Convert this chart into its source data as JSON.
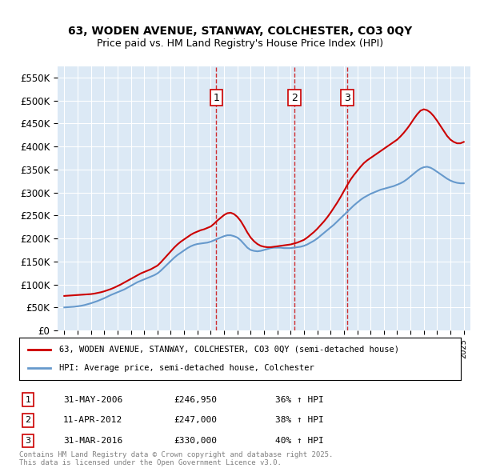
{
  "title_line1": "63, WODEN AVENUE, STANWAY, COLCHESTER, CO3 0QY",
  "title_line2": "Price paid vs. HM Land Registry's House Price Index (HPI)",
  "ylabel": "",
  "bg_color": "#dce9f5",
  "plot_bg_color": "#dce9f5",
  "red_line_label": "63, WODEN AVENUE, STANWAY, COLCHESTER, CO3 0QY (semi-detached house)",
  "blue_line_label": "HPI: Average price, semi-detached house, Colchester",
  "transactions": [
    {
      "num": 1,
      "date": "31-MAY-2006",
      "price": "£246,950",
      "pct": "36% ↑ HPI",
      "x": 2006.42
    },
    {
      "num": 2,
      "date": "11-APR-2012",
      "price": "£247,000",
      "pct": "38% ↑ HPI",
      "x": 2012.28
    },
    {
      "num": 3,
      "date": "31-MAR-2016",
      "price": "£330,000",
      "pct": "40% ↑ HPI",
      "x": 2016.25
    }
  ],
  "footer": "Contains HM Land Registry data © Crown copyright and database right 2025.\nThis data is licensed under the Open Government Licence v3.0.",
  "ylim": [
    0,
    575000
  ],
  "yticks": [
    0,
    50000,
    100000,
    150000,
    200000,
    250000,
    300000,
    350000,
    400000,
    450000,
    500000,
    550000
  ],
  "ytick_labels": [
    "£0",
    "£50K",
    "£100K",
    "£150K",
    "£200K",
    "£250K",
    "£300K",
    "£350K",
    "£400K",
    "£450K",
    "£500K",
    "£550K"
  ],
  "red_color": "#cc0000",
  "blue_color": "#6699cc",
  "hpi_x": [
    1995.0,
    1995.25,
    1995.5,
    1995.75,
    1996.0,
    1996.25,
    1996.5,
    1996.75,
    1997.0,
    1997.25,
    1997.5,
    1997.75,
    1998.0,
    1998.25,
    1998.5,
    1998.75,
    1999.0,
    1999.25,
    1999.5,
    1999.75,
    2000.0,
    2000.25,
    2000.5,
    2000.75,
    2001.0,
    2001.25,
    2001.5,
    2001.75,
    2002.0,
    2002.25,
    2002.5,
    2002.75,
    2003.0,
    2003.25,
    2003.5,
    2003.75,
    2004.0,
    2004.25,
    2004.5,
    2004.75,
    2005.0,
    2005.25,
    2005.5,
    2005.75,
    2006.0,
    2006.25,
    2006.5,
    2006.75,
    2007.0,
    2007.25,
    2007.5,
    2007.75,
    2008.0,
    2008.25,
    2008.5,
    2008.75,
    2009.0,
    2009.25,
    2009.5,
    2009.75,
    2010.0,
    2010.25,
    2010.5,
    2010.75,
    2011.0,
    2011.25,
    2011.5,
    2011.75,
    2012.0,
    2012.25,
    2012.5,
    2012.75,
    2013.0,
    2013.25,
    2013.5,
    2013.75,
    2014.0,
    2014.25,
    2014.5,
    2014.75,
    2015.0,
    2015.25,
    2015.5,
    2015.75,
    2016.0,
    2016.25,
    2016.5,
    2016.75,
    2017.0,
    2017.25,
    2017.5,
    2017.75,
    2018.0,
    2018.25,
    2018.5,
    2018.75,
    2019.0,
    2019.25,
    2019.5,
    2019.75,
    2020.0,
    2020.25,
    2020.5,
    2020.75,
    2021.0,
    2021.25,
    2021.5,
    2021.75,
    2022.0,
    2022.25,
    2022.5,
    2022.75,
    2023.0,
    2023.25,
    2023.5,
    2023.75,
    2024.0,
    2024.25,
    2024.5,
    2024.75,
    2025.0
  ],
  "hpi_y": [
    50000,
    50500,
    51000,
    51500,
    52500,
    53500,
    55000,
    57000,
    59000,
    61500,
    64000,
    67000,
    70000,
    73500,
    77000,
    80000,
    83000,
    86000,
    89000,
    93000,
    97000,
    101000,
    105000,
    108000,
    111000,
    114000,
    117000,
    120000,
    124000,
    130000,
    137000,
    144000,
    151000,
    158000,
    164000,
    169000,
    174000,
    179000,
    183000,
    186000,
    188000,
    189000,
    190000,
    191000,
    193000,
    196000,
    199000,
    202000,
    205000,
    207000,
    207000,
    205000,
    202000,
    196000,
    188000,
    180000,
    175000,
    173000,
    172000,
    173000,
    175000,
    177000,
    179000,
    180000,
    180000,
    180000,
    179000,
    179000,
    179000,
    180000,
    181000,
    182000,
    184000,
    187000,
    191000,
    195000,
    200000,
    206000,
    212000,
    218000,
    224000,
    230000,
    237000,
    244000,
    251000,
    258000,
    265000,
    272000,
    278000,
    284000,
    289000,
    293000,
    297000,
    300000,
    303000,
    306000,
    308000,
    310000,
    312000,
    314000,
    317000,
    320000,
    324000,
    329000,
    335000,
    341000,
    347000,
    352000,
    355000,
    356000,
    354000,
    350000,
    345000,
    340000,
    335000,
    330000,
    326000,
    323000,
    321000,
    320000,
    320000
  ],
  "red_x": [
    1995.0,
    1995.25,
    1995.5,
    1995.75,
    1996.0,
    1996.25,
    1996.5,
    1996.75,
    1997.0,
    1997.25,
    1997.5,
    1997.75,
    1998.0,
    1998.25,
    1998.5,
    1998.75,
    1999.0,
    1999.25,
    1999.5,
    1999.75,
    2000.0,
    2000.25,
    2000.5,
    2000.75,
    2001.0,
    2001.25,
    2001.5,
    2001.75,
    2002.0,
    2002.25,
    2002.5,
    2002.75,
    2003.0,
    2003.25,
    2003.5,
    2003.75,
    2004.0,
    2004.25,
    2004.5,
    2004.75,
    2005.0,
    2005.25,
    2005.5,
    2005.75,
    2006.0,
    2006.25,
    2006.5,
    2006.75,
    2007.0,
    2007.25,
    2007.5,
    2007.75,
    2008.0,
    2008.25,
    2008.5,
    2008.75,
    2009.0,
    2009.25,
    2009.5,
    2009.75,
    2010.0,
    2010.25,
    2010.5,
    2010.75,
    2011.0,
    2011.25,
    2011.5,
    2011.75,
    2012.0,
    2012.25,
    2012.5,
    2012.75,
    2013.0,
    2013.25,
    2013.5,
    2013.75,
    2014.0,
    2014.25,
    2014.5,
    2014.75,
    2015.0,
    2015.25,
    2015.5,
    2015.75,
    2016.0,
    2016.25,
    2016.5,
    2016.75,
    2017.0,
    2017.25,
    2017.5,
    2017.75,
    2018.0,
    2018.25,
    2018.5,
    2018.75,
    2019.0,
    2019.25,
    2019.5,
    2019.75,
    2020.0,
    2020.25,
    2020.5,
    2020.75,
    2021.0,
    2021.25,
    2021.5,
    2021.75,
    2022.0,
    2022.25,
    2022.5,
    2022.75,
    2023.0,
    2023.25,
    2023.5,
    2023.75,
    2024.0,
    2024.25,
    2024.5,
    2024.75,
    2025.0
  ],
  "red_y": [
    75000,
    75500,
    76000,
    76500,
    77000,
    77500,
    78000,
    78500,
    79000,
    80000,
    81500,
    83000,
    85000,
    87500,
    90000,
    93000,
    96500,
    100000,
    104000,
    108000,
    112000,
    116000,
    120000,
    124000,
    127000,
    130000,
    133000,
    137000,
    141000,
    148000,
    156000,
    164000,
    172000,
    180000,
    187000,
    193000,
    198000,
    203000,
    208000,
    212000,
    215000,
    218000,
    220000,
    223000,
    226000,
    232000,
    239000,
    245000,
    251000,
    255000,
    256000,
    253000,
    247000,
    238000,
    226000,
    213000,
    202000,
    194000,
    188000,
    184000,
    182000,
    181000,
    181000,
    182000,
    183000,
    184000,
    185000,
    186000,
    187000,
    189000,
    191000,
    194000,
    197000,
    202000,
    208000,
    214000,
    221000,
    229000,
    237000,
    246000,
    256000,
    267000,
    278000,
    290000,
    303000,
    316000,
    328000,
    338000,
    347000,
    356000,
    364000,
    370000,
    375000,
    380000,
    385000,
    390000,
    395000,
    400000,
    405000,
    410000,
    415000,
    422000,
    430000,
    439000,
    449000,
    460000,
    470000,
    478000,
    481000,
    479000,
    474000,
    466000,
    456000,
    445000,
    434000,
    423000,
    415000,
    410000,
    407000,
    407000,
    410000
  ]
}
